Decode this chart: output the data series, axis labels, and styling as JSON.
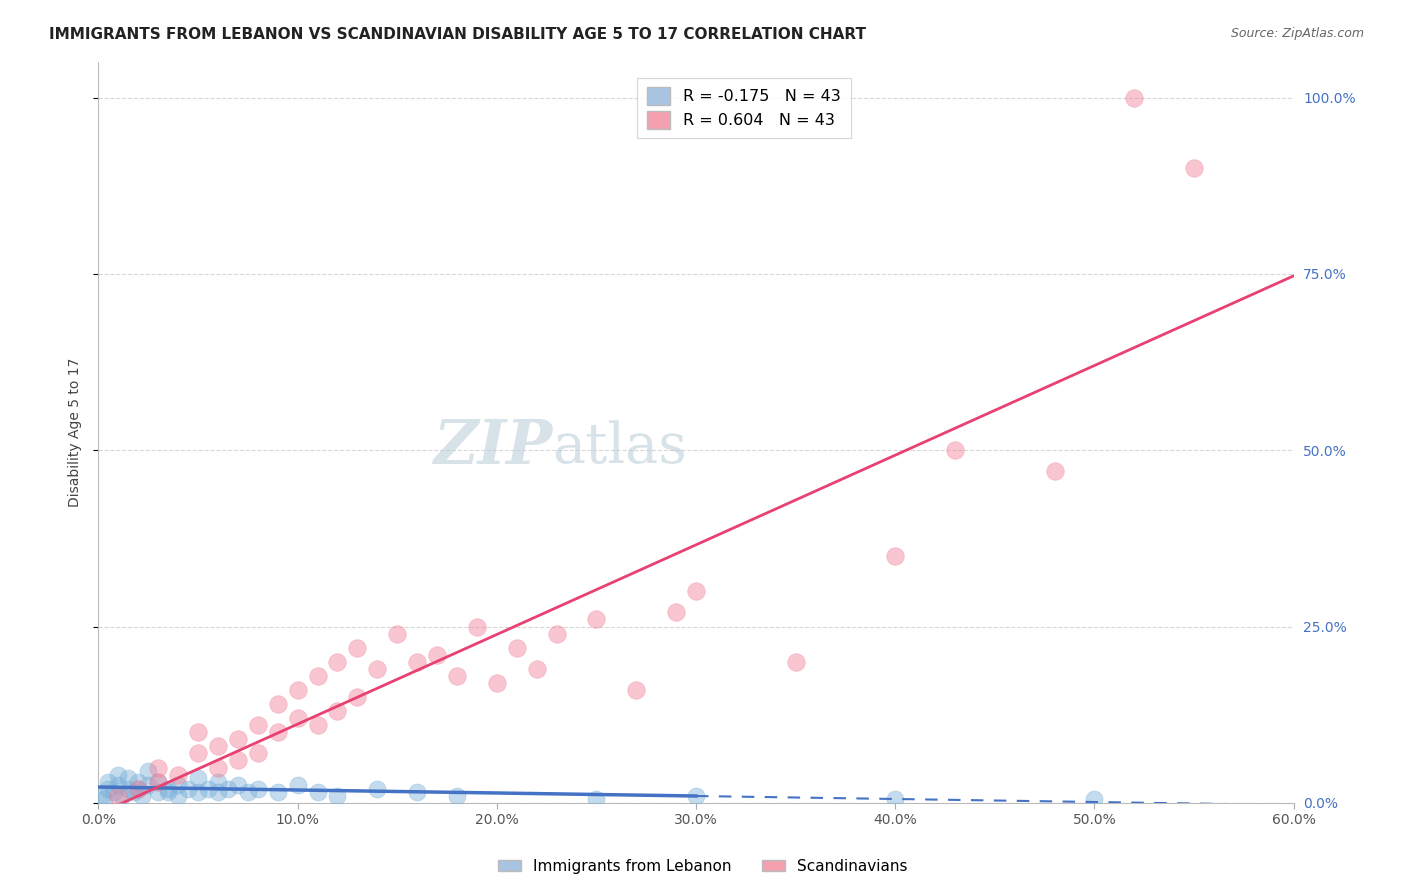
{
  "title": "IMMIGRANTS FROM LEBANON VS SCANDINAVIAN DISABILITY AGE 5 TO 17 CORRELATION CHART",
  "source": "Source: ZipAtlas.com",
  "ylabel": "Disability Age 5 to 17",
  "y_tick_values": [
    0,
    25,
    50,
    75,
    100
  ],
  "x_tick_values": [
    0,
    10,
    20,
    30,
    40,
    50,
    60
  ],
  "color_lebanon": "#7ab0d8",
  "color_scandi": "#f08098",
  "legend_label_leb": "R = -0.175   N = 43",
  "legend_label_sc": "R = 0.604   N = 43",
  "legend_color_leb": "#a8c4e0",
  "legend_color_sc": "#f4a0b0",
  "bottom_legend_leb": "Immigrants from Lebanon",
  "bottom_legend_sc": "Scandinavians",
  "scandi_x": [
    1,
    2,
    3,
    3,
    4,
    5,
    5,
    6,
    6,
    7,
    7,
    8,
    8,
    9,
    9,
    10,
    10,
    11,
    11,
    12,
    12,
    13,
    13,
    14,
    15,
    16,
    17,
    18,
    19,
    20,
    21,
    22,
    23,
    25,
    27,
    29,
    30,
    35,
    40,
    43,
    48,
    52,
    55
  ],
  "scandi_y": [
    1,
    2,
    3,
    5,
    4,
    7,
    10,
    5,
    8,
    6,
    9,
    7,
    11,
    10,
    14,
    12,
    16,
    11,
    18,
    13,
    20,
    15,
    22,
    19,
    24,
    20,
    21,
    18,
    25,
    17,
    22,
    19,
    24,
    26,
    16,
    27,
    30,
    20,
    35,
    50,
    47,
    100,
    90
  ],
  "lebanon_x": [
    0.2,
    0.3,
    0.5,
    0.5,
    0.8,
    1.0,
    1.0,
    1.2,
    1.5,
    1.5,
    1.8,
    2.0,
    2.0,
    2.2,
    2.5,
    2.5,
    3.0,
    3.0,
    3.5,
    3.5,
    4.0,
    4.0,
    4.5,
    5.0,
    5.0,
    5.5,
    6.0,
    6.0,
    6.5,
    7.0,
    7.5,
    8.0,
    9.0,
    10.0,
    11.0,
    12.0,
    14.0,
    16.0,
    18.0,
    25.0,
    30.0,
    40.0,
    50.0
  ],
  "lebanon_y": [
    1.0,
    0.5,
    2.0,
    3.0,
    1.5,
    2.5,
    4.0,
    1.0,
    2.0,
    3.5,
    1.5,
    2.0,
    3.0,
    1.0,
    2.5,
    4.5,
    1.5,
    3.0,
    2.0,
    1.5,
    2.5,
    1.0,
    2.0,
    3.5,
    1.5,
    2.0,
    1.5,
    3.0,
    2.0,
    2.5,
    1.5,
    2.0,
    1.5,
    2.5,
    1.5,
    1.0,
    2.0,
    1.5,
    1.0,
    0.5,
    1.0,
    0.5,
    0.5
  ],
  "xlim": [
    0,
    60
  ],
  "ylim": [
    0,
    105
  ],
  "background_color": "#ffffff",
  "grid_color": "#d8d8d8",
  "title_fontsize": 11,
  "source_fontsize": 9,
  "axis_label_fontsize": 10,
  "tick_fontsize": 10,
  "right_tick_color": "#4472C4",
  "watermark_text": "ZIPatlas",
  "watermark_color": "#ccdde8"
}
